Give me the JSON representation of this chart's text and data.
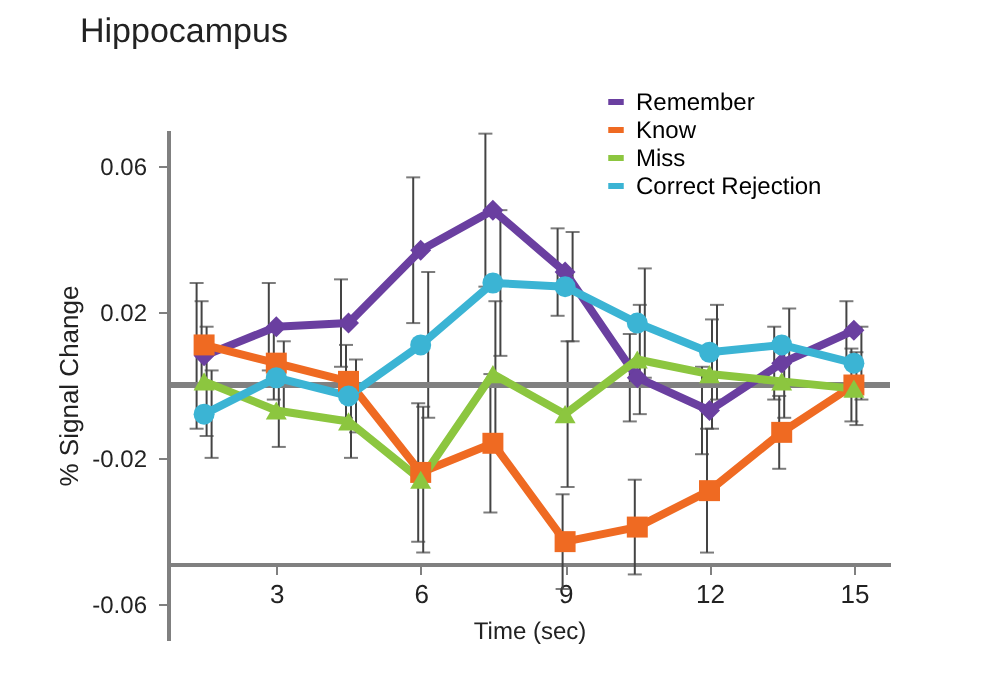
{
  "chart_data": {
    "type": "line",
    "title": "Hippocampus",
    "xlabel": "Time (sec)",
    "ylabel": "% Signal Change",
    "x": [
      1.5,
      3,
      4.5,
      6,
      7.5,
      9,
      10.5,
      12,
      13.5,
      15
    ],
    "series": [
      {
        "name": "Remember",
        "color": "#6a3fa0",
        "marker": "diamond",
        "values": [
          0.008,
          0.016,
          0.017,
          0.037,
          0.048,
          0.031,
          0.002,
          -0.007,
          0.006,
          0.015
        ],
        "errors": [
          0.02,
          0.012,
          0.012,
          0.02,
          0.021,
          0.012,
          0.012,
          0.012,
          0.01,
          0.008
        ]
      },
      {
        "name": "Know",
        "color": "#ef6a22",
        "marker": "square",
        "values": [
          0.011,
          0.006,
          0.001,
          -0.024,
          -0.016,
          -0.043,
          -0.039,
          -0.029,
          -0.013,
          0.0
        ],
        "errors": [
          0.012,
          0.01,
          0.01,
          0.019,
          0.019,
          0.013,
          0.013,
          0.017,
          0.01,
          0.01
        ]
      },
      {
        "name": "Miss",
        "color": "#8cc63f",
        "marker": "triangle",
        "values": [
          0.001,
          -0.007,
          -0.01,
          -0.026,
          0.003,
          -0.008,
          0.007,
          0.003,
          0.001,
          -0.001
        ],
        "errors": [
          0.015,
          0.01,
          0.01,
          0.02,
          0.02,
          0.02,
          0.015,
          0.015,
          0.01,
          0.01
        ]
      },
      {
        "name": "Correct Rejection",
        "color": "#3bb4d4",
        "marker": "circle",
        "values": [
          -0.008,
          0.002,
          -0.003,
          0.011,
          0.028,
          0.027,
          0.017,
          0.009,
          0.011,
          0.006
        ],
        "errors": [
          0.012,
          0.01,
          0.01,
          0.02,
          0.02,
          0.015,
          0.015,
          0.013,
          0.01,
          0.01
        ]
      }
    ],
    "xlim": [
      0.75,
      15.75
    ],
    "xticks": [
      3,
      6,
      9,
      12,
      15
    ],
    "ylim": [
      -0.07,
      0.07
    ],
    "yticks": [
      0.06,
      0.02,
      -0.02,
      -0.06
    ],
    "ref_lines": [
      {
        "axis": "y",
        "value": 0,
        "color": "#808080"
      }
    ],
    "grid": false,
    "legend": "top right"
  }
}
